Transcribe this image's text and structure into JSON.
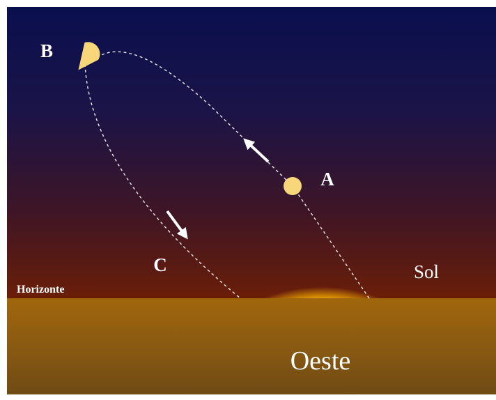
{
  "diagram": {
    "points": [
      {
        "label": "A"
      },
      {
        "label": "B"
      },
      {
        "label": "C"
      }
    ],
    "sun_label": "Sol",
    "horizon_label": "Horizonte",
    "direction_label": "Oeste"
  }
}
